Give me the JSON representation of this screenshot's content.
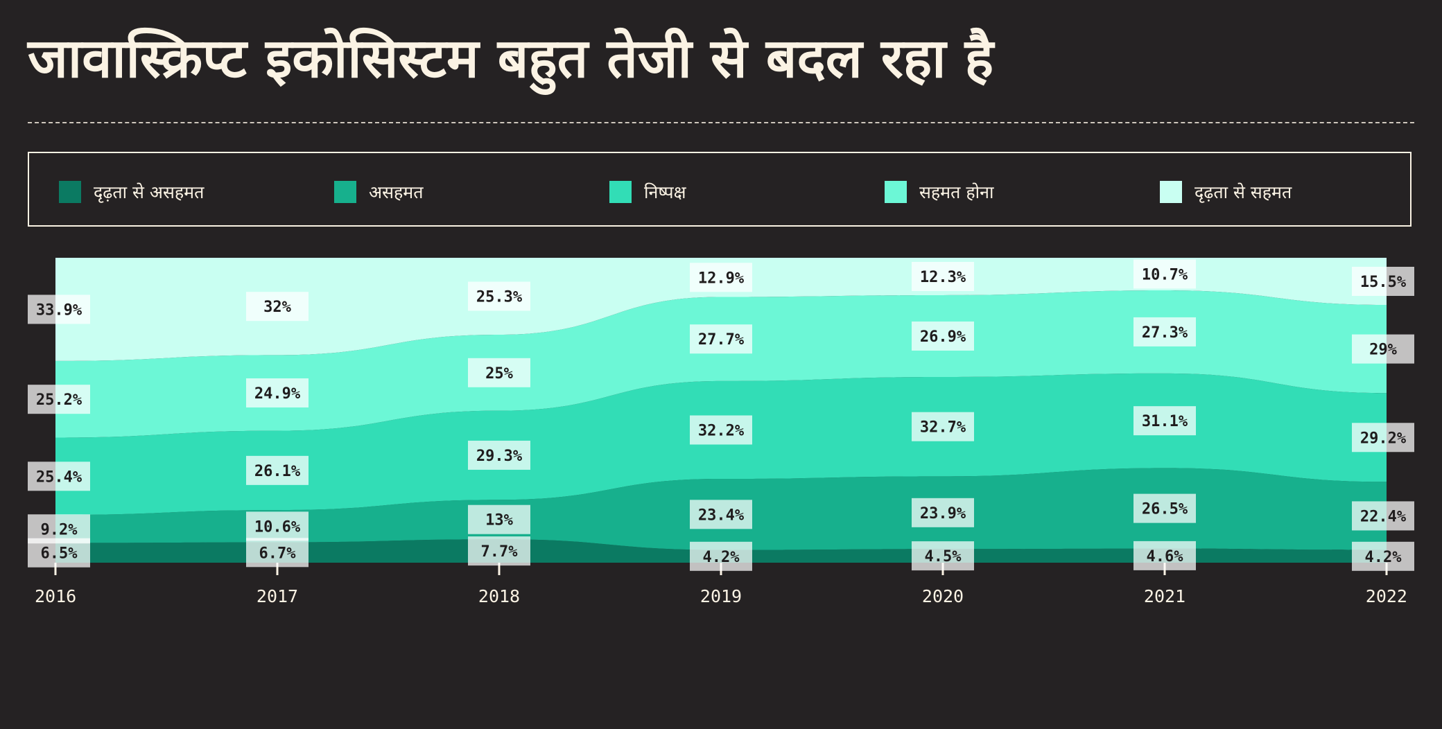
{
  "title": "जावास्क्रिप्ट इकोसिस्टम बहुत तेजी से बदल रहा है",
  "legend": [
    {
      "label": "दृढ़ता से असहमत",
      "color": "#0b7a62"
    },
    {
      "label": "असहमत",
      "color": "#17b08d"
    },
    {
      "label": "निष्पक्ष",
      "color": "#32ddb6"
    },
    {
      "label": "सहमत होना",
      "color": "#6cf7d6"
    },
    {
      "label": "दृढ़ता से सहमत",
      "color": "#c9fff2"
    }
  ],
  "chart_data": {
    "type": "area",
    "stacked": true,
    "normalized": true,
    "x": [
      "2016",
      "2017",
      "2018",
      "2019",
      "2020",
      "2021",
      "2022"
    ],
    "series": [
      {
        "name": "दृढ़ता से असहमत",
        "values": [
          6.5,
          6.7,
          7.7,
          4.2,
          4.5,
          4.6,
          4.2
        ],
        "labels": [
          "6.5%",
          "6.7%",
          "7.7%",
          "4.2%",
          "4.5%",
          "4.6%",
          "4.2%"
        ]
      },
      {
        "name": "असहमत",
        "values": [
          9.2,
          10.6,
          13,
          23.4,
          23.9,
          26.5,
          22.4
        ],
        "labels": [
          "9.2%",
          "10.6%",
          "13%",
          "23.4%",
          "23.9%",
          "26.5%",
          "22.4%"
        ]
      },
      {
        "name": "निष्पक्ष",
        "values": [
          25.4,
          26.1,
          29.3,
          32.2,
          32.7,
          31.1,
          29.2
        ],
        "labels": [
          "25.4%",
          "26.1%",
          "29.3%",
          "32.2%",
          "32.7%",
          "31.1%",
          "29.2%"
        ]
      },
      {
        "name": "सहमत होना",
        "values": [
          25.2,
          24.9,
          25,
          27.7,
          26.9,
          27.3,
          29
        ],
        "labels": [
          "25.2%",
          "24.9%",
          "25%",
          "27.7%",
          "26.9%",
          "27.3%",
          "29%"
        ]
      },
      {
        "name": "दृढ़ता से सहमत",
        "values": [
          33.9,
          32,
          25.3,
          12.9,
          12.3,
          10.7,
          15.5
        ],
        "labels": [
          "33.9%",
          "32%",
          "25.3%",
          "12.9%",
          "12.3%",
          "10.7%",
          "15.5%"
        ]
      }
    ],
    "colors": [
      "#0b7a62",
      "#17b08d",
      "#32ddb6",
      "#6cf7d6",
      "#c9fff2"
    ],
    "grid": false
  }
}
